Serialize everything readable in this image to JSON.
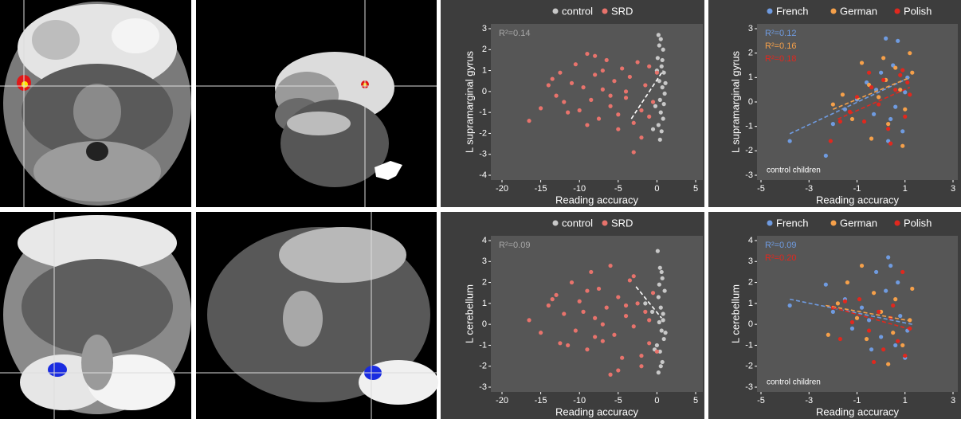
{
  "chart_data": [
    {
      "type": "scatter",
      "xlabel": "Reading accuracy",
      "ylabel": "L supramarginal gyrus",
      "xlim": [
        -20,
        5
      ],
      "xticks": [
        -20,
        -15,
        -10,
        -5,
        0,
        5
      ],
      "ylim": [
        -4,
        3
      ],
      "yticks": [
        -4,
        -3,
        -2,
        -1,
        0,
        1,
        2,
        3
      ],
      "annotations": [
        {
          "text": "R²=0.14",
          "color": "#a8a8a8"
        }
      ],
      "series": [
        {
          "name": "control",
          "color": "#c8c8c8",
          "x": [
            0.2,
            0.5,
            0.8,
            0.1,
            0.6,
            0.9,
            0.3,
            0.7,
            1.0,
            0.4,
            -0.2,
            0.5,
            0.8,
            0.2,
            0.6,
            1.1,
            0.0,
            0.7,
            0.3,
            0.9,
            -0.5,
            0.4
          ],
          "values": [
            2.7,
            2.5,
            2.0,
            1.6,
            1.2,
            0.9,
            0.5,
            0.2,
            -0.1,
            -0.4,
            -0.7,
            -1.0,
            -1.3,
            -1.6,
            -1.9,
            0.4,
            1.0,
            1.5,
            2.2,
            -0.6,
            -1.8,
            -2.3
          ],
          "fit_x": [
            -3.3,
            0.8
          ],
          "fit_y": [
            -1.3,
            1.0
          ],
          "fit_color": "#ffffff"
        },
        {
          "name": "SRD",
          "color": "#e8736c",
          "x": [
            -16.5,
            -15,
            -14,
            -13,
            -12.5,
            -12,
            -11,
            -10.5,
            -10,
            -9.5,
            -9,
            -8.5,
            -8,
            -7.5,
            -7,
            -6.5,
            -6,
            -5.5,
            -5,
            -4.5,
            -4,
            -3.5,
            -3,
            -2.5,
            -2,
            -1.5,
            -1,
            -0.5,
            0,
            -11.5,
            -9,
            -7,
            -6,
            -4,
            -3,
            -2,
            -1,
            -13.5,
            -8,
            -5
          ],
          "values": [
            -1.4,
            -0.8,
            0.3,
            -0.2,
            0.9,
            -0.5,
            0.4,
            1.3,
            -0.9,
            0.2,
            1.8,
            -0.4,
            0.8,
            -1.3,
            0.1,
            1.5,
            -0.7,
            0.5,
            -1.8,
            1.1,
            -0.3,
            0.7,
            -1.5,
            1.4,
            -0.9,
            0.3,
            1.2,
            -0.5,
            0.9,
            -1.0,
            -1.6,
            1.0,
            -0.2,
            0.0,
            -2.9,
            -2.2,
            -1.2,
            0.6,
            1.7,
            -1.1
          ]
        }
      ]
    },
    {
      "type": "scatter",
      "xlabel": "Reading accuracy",
      "ylabel": "L supramarginal gyrus",
      "note": "control children",
      "xlim": [
        -5,
        3
      ],
      "xticks": [
        -5,
        -3,
        -1,
        1,
        3
      ],
      "ylim": [
        -3,
        3
      ],
      "yticks": [
        -3,
        -2,
        -1,
        0,
        1,
        2,
        3
      ],
      "annotations": [
        {
          "text": "R²=0.12",
          "color": "#6f9be0"
        },
        {
          "text": "R²=0.16",
          "color": "#f5a04a"
        },
        {
          "text": "R²=0.18",
          "color": "#e0281e"
        }
      ],
      "series": [
        {
          "name": "French",
          "color": "#6f9be0",
          "x": [
            -3.8,
            -2.3,
            -2,
            -1.5,
            -1,
            -0.6,
            -0.3,
            0,
            0.2,
            0.4,
            0.5,
            0.7,
            0.9,
            1,
            0.3,
            -0.2,
            0.6,
            1.1
          ],
          "values": [
            -1.6,
            -2.2,
            -0.9,
            -0.3,
            0.1,
            0.8,
            -0.5,
            1.2,
            2.6,
            -0.7,
            1.5,
            2.5,
            -1.2,
            0.4,
            -1.6,
            0.5,
            -0.2,
            1.0
          ],
          "fit_x": [
            -3.8,
            1.2
          ],
          "fit_y": [
            -1.3,
            1.0
          ]
        },
        {
          "name": "German",
          "color": "#f5a04a",
          "x": [
            -2,
            -1.6,
            -1.2,
            -0.8,
            -0.5,
            -0.1,
            0.1,
            0.3,
            0.6,
            0.8,
            1,
            1.2,
            1.3,
            -0.4,
            0.2,
            0.9
          ],
          "values": [
            -0.1,
            0.3,
            -0.7,
            1.6,
            0.7,
            0.2,
            1.8,
            -0.9,
            1.4,
            0.5,
            -0.3,
            2.0,
            1.2,
            -1.5,
            0.9,
            -1.8
          ],
          "fit_x": [
            -2,
            1.2
          ],
          "fit_y": [
            -0.3,
            1.0
          ]
        },
        {
          "name": "Polish",
          "color": "#e0281e",
          "x": [
            -2.1,
            -1.7,
            -1.3,
            -1,
            -0.7,
            -0.4,
            -0.1,
            0.1,
            0.4,
            0.6,
            0.8,
            1,
            1.1,
            1.2,
            -0.5,
            0.3,
            0.9
          ],
          "values": [
            -1.6,
            -0.8,
            -0.4,
            0.2,
            -0.8,
            0.6,
            -0.1,
            0.9,
            -1.7,
            0.5,
            1.1,
            -0.6,
            0.8,
            0.3,
            1.2,
            -1.1,
            1.3
          ],
          "fit_x": [
            -1.8,
            1.2
          ],
          "fit_y": [
            -0.7,
            0.6
          ]
        }
      ]
    },
    {
      "type": "scatter",
      "xlabel": "Reading accuracy",
      "ylabel": "L cerebellum",
      "xlim": [
        -20,
        5
      ],
      "xticks": [
        -20,
        -15,
        -10,
        -5,
        0,
        5
      ],
      "ylim": [
        -3,
        4
      ],
      "yticks": [
        -3,
        -2,
        -1,
        0,
        1,
        2,
        3,
        4
      ],
      "annotations": [
        {
          "text": "R²=0.09",
          "color": "#a8a8a8"
        }
      ],
      "series": [
        {
          "name": "control",
          "color": "#c8c8c8",
          "x": [
            0.1,
            0.4,
            0.7,
            1.0,
            0.2,
            0.5,
            0.8,
            0.3,
            0.6,
            0.9,
            0.0,
            0.4,
            0.7,
            -0.3,
            0.2,
            0.5,
            0.8,
            1.1,
            0.3,
            -0.6,
            0.6,
            -1.5
          ],
          "values": [
            3.5,
            2.7,
            2.2,
            1.6,
            1.3,
            0.8,
            0.5,
            0.1,
            -0.3,
            -0.7,
            -1.0,
            -1.3,
            -1.8,
            -1.2,
            -2.3,
            -2.0,
            0.2,
            -0.4,
            1.9,
            0.6,
            2.5,
            1.0
          ],
          "fit_x": [
            -2.7,
            0.6
          ],
          "fit_y": [
            1.8,
            0.3
          ],
          "fit_color": "#ffffff"
        },
        {
          "name": "SRD",
          "color": "#e8736c",
          "x": [
            -16.5,
            -15,
            -14,
            -13,
            -12.5,
            -12,
            -11,
            -10.5,
            -10,
            -9.5,
            -9,
            -8.5,
            -8,
            -7.5,
            -7,
            -6.5,
            -6,
            -5.5,
            -5,
            -4.5,
            -4,
            -3.5,
            -3,
            -2.5,
            -2,
            -1.5,
            -1,
            -0.5,
            0,
            -11.5,
            -9,
            -7,
            -6,
            -4,
            -3,
            -2,
            -1,
            -13.5,
            -8,
            -5
          ],
          "values": [
            0.2,
            -0.4,
            0.9,
            1.4,
            -0.9,
            0.5,
            2.0,
            -0.3,
            1.1,
            0.6,
            -1.2,
            2.5,
            0.3,
            1.7,
            -0.8,
            0.8,
            2.8,
            -0.5,
            1.3,
            -1.6,
            0.4,
            2.1,
            -0.1,
            1.0,
            -2.0,
            0.6,
            -0.9,
            1.5,
            -1.3,
            -1.0,
            1.6,
            0.0,
            -2.4,
            0.9,
            2.3,
            -1.5,
            0.2,
            1.2,
            -0.6,
            -2.2
          ]
        }
      ]
    },
    {
      "type": "scatter",
      "xlabel": "Reading accuracy",
      "ylabel": "L cerebellum",
      "note": "control children",
      "xlim": [
        -5,
        3
      ],
      "xticks": [
        -5,
        -3,
        -1,
        1,
        3
      ],
      "ylim": [
        -3,
        4
      ],
      "yticks": [
        -3,
        -2,
        -1,
        0,
        1,
        2,
        3,
        4
      ],
      "annotations": [
        {
          "text": "R²=0.09",
          "color": "#6f9be0"
        },
        {
          "text": "R²=0.20",
          "color": "#e0281e"
        }
      ],
      "series": [
        {
          "name": "French",
          "color": "#6f9be0",
          "x": [
            -3.8,
            -2.3,
            -2,
            -1.5,
            -1.2,
            -0.8,
            -0.5,
            -0.2,
            0,
            0.2,
            0.4,
            0.6,
            0.8,
            1,
            1.1,
            -0.4,
            0.3,
            0.7
          ],
          "values": [
            0.9,
            1.9,
            0.6,
            1.2,
            -0.2,
            0.8,
            0.2,
            2.5,
            -0.6,
            1.6,
            2.8,
            -1.0,
            0.4,
            -1.6,
            -0.3,
            -1.2,
            3.2,
            2.0
          ],
          "fit_x": [
            -3.8,
            1.3
          ],
          "fit_y": [
            1.2,
            0.0
          ]
        },
        {
          "name": "German",
          "color": "#f5a04a",
          "x": [
            -2.2,
            -1.8,
            -1.4,
            -1,
            -0.6,
            -0.3,
            0,
            0.3,
            0.6,
            0.9,
            1.2,
            1.3,
            -0.8,
            0.5
          ],
          "values": [
            -0.5,
            1.0,
            2.0,
            0.3,
            -0.7,
            1.5,
            0.6,
            -1.9,
            1.2,
            -1.0,
            0.2,
            1.7,
            2.8,
            -0.4
          ],
          "fit_x": [
            -2.3,
            1.3
          ],
          "fit_y": [
            0.9,
            0.15
          ]
        },
        {
          "name": "Polish",
          "color": "#e0281e",
          "x": [
            -2,
            -1.7,
            -1.2,
            -0.9,
            -0.5,
            -0.1,
            0.1,
            0.4,
            0.7,
            0.9,
            1.0,
            1.2,
            -0.3,
            0.5,
            -1.5
          ],
          "values": [
            0.8,
            -0.7,
            0.1,
            1.2,
            -0.3,
            0.6,
            -1.2,
            0.3,
            -0.8,
            2.5,
            -1.5,
            -0.2,
            -1.8,
            0.9,
            1.1
          ],
          "fit_x": [
            -2,
            1.1
          ],
          "fit_y": [
            0.8,
            -0.2
          ]
        }
      ]
    }
  ]
}
